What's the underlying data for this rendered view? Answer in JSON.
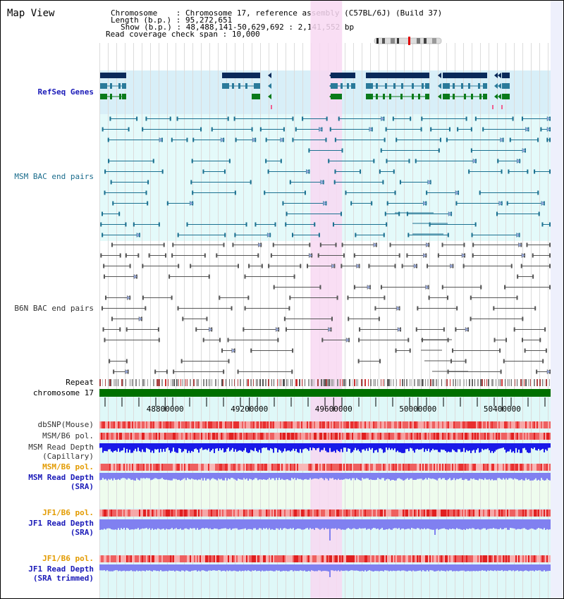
{
  "title": "Map View",
  "info": {
    "chromosome_label": "Chromosome",
    "chromosome_value": "Chromosome 17, reference assembly (C57BL/6J) (Build 37)",
    "length_label": "Length (b.p.)",
    "length_value": "95,272,651",
    "show_label": "Show (b.p.)",
    "show_value": "48,488,141-50,629,692 : 2,141,552 bp",
    "coverage_label": "Read coverage check span",
    "coverage_value": "10,000"
  },
  "tracks": {
    "refseq": "RefSeq Genes",
    "msm_bac": "MSM BAC end pairs",
    "b6n_bac": "B6N BAC end pairs",
    "repeat": "Repeat",
    "chromosome": "chromosome 17",
    "dbsnp": "dbSNP(Mouse)",
    "msm_b6_pol_1": "MSM/B6 pol.",
    "msm_depth_cap_1": "MSM Read Depth",
    "msm_depth_cap_2": "(Capillary)",
    "msm_b6_pol_2": "MSM/B6 pol.",
    "msm_depth_sra_1": "MSM Read Depth",
    "msm_depth_sra_2": "(SRA)",
    "jf1_b6_pol_1": "JF1/B6 pol.",
    "jf1_depth_sra_1": "JF1 Read Depth",
    "jf1_depth_sra_2": "(SRA)",
    "jf1_b6_pol_2": "JF1/B6 pol.",
    "jf1_depth_trim_1": "JF1 Read Depth",
    "jf1_depth_trim_2": "(SRA trimmed)"
  },
  "axis": {
    "range": [
      48488141,
      50629692
    ],
    "ticks": [
      "48800000",
      "49200000",
      "49600000",
      "50000000",
      "50400000"
    ],
    "tick_values": [
      48800000,
      49200000,
      49600000,
      50000000,
      50400000
    ]
  },
  "highlight_region": [
    49490000,
    49640000
  ],
  "colors": {
    "refseq_bg": "#d8eff8",
    "msm_bg": "#e4fafa",
    "highlight": "#f8d8f2",
    "gene_dark": "#0a2a5a",
    "gene_mid": "#2a7a9a",
    "gene_green": "#0a7a1a",
    "msm_pair": "#1a7090",
    "b6n_pair": "#555555",
    "chrom_bar": "#007000",
    "snp_red": "#e83030",
    "depth_blue": "#1a1ae8",
    "depth_light": "#8080f0",
    "jf1_bg": "#dff8f8",
    "msm_sra_bg": "#eefcee"
  }
}
